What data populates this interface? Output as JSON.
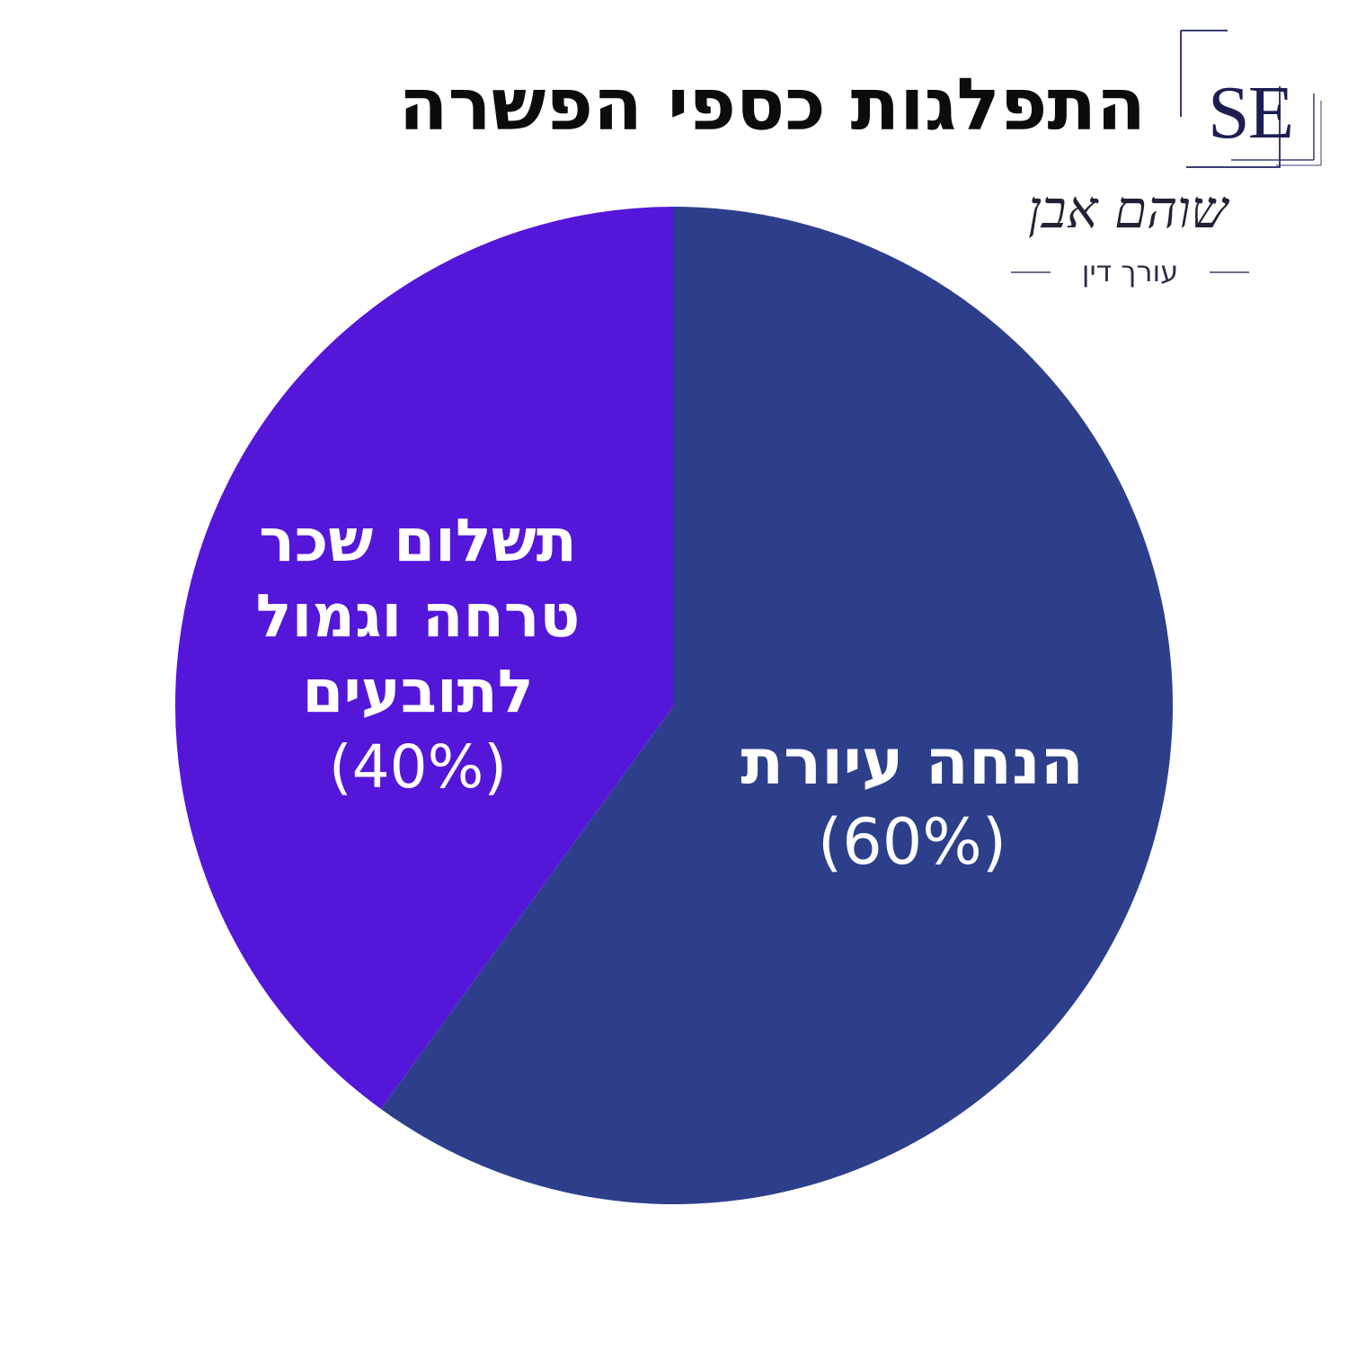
{
  "header": {
    "title": "התפלגות כספי הפשרה"
  },
  "logo": {
    "monogram": "SE",
    "signature": "שוהם אבן",
    "subtitle": "עורך דין",
    "frame_color": "#3a3c73",
    "monogram_color": "#1c1e52"
  },
  "chart_data": {
    "type": "pie",
    "title": "התפלגות כספי הפשרה",
    "slices": [
      {
        "label": "הנחה עיורת",
        "value_label": "(60%)",
        "value": 60,
        "color": "#2d3f8b"
      },
      {
        "label": "תשלום שכר טרחה וגמול לתובעים",
        "value_label": "(40%)",
        "value": 40,
        "color": "#5417d9"
      }
    ],
    "start_angle_deg": 0,
    "direction": "clockwise",
    "legend": "none"
  }
}
